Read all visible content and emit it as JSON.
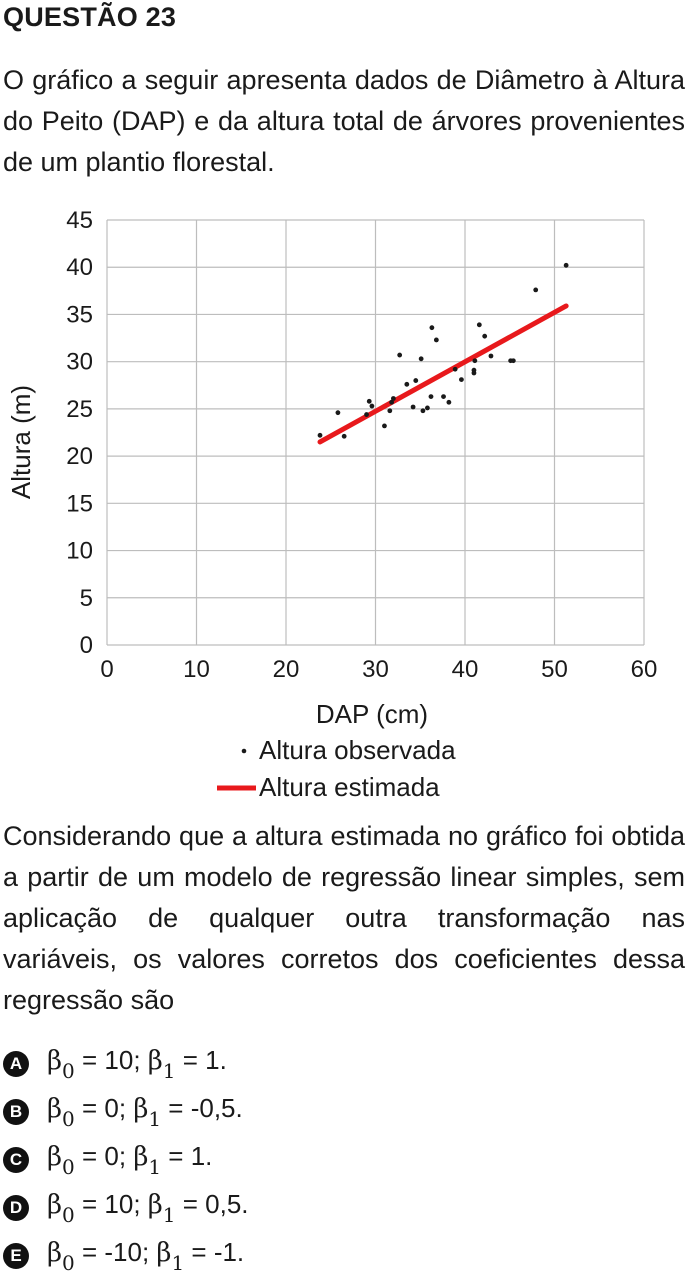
{
  "question": {
    "title": "QUESTÃO 23",
    "stem_intro": "O gráfico a seguir apresenta dados de Diâmetro à Altura do Peito (DAP) e da altura total de árvores provenientes de um plantio florestal.",
    "stem_question": "Considerando que a altura estimada no gráfico foi obtida a partir de um modelo de regressão linear simples, sem aplicação de qualquer outra transformação nas variáveis, os valores corretos dos coeficientes dessa regressão são"
  },
  "options": [
    {
      "letter": "A",
      "b0_symbol": "β",
      "b0_sub": "0",
      "b0_value": " = 10; ",
      "b1_symbol": "β",
      "b1_sub": "1",
      "b1_value": " = 1."
    },
    {
      "letter": "B",
      "b0_symbol": "β",
      "b0_sub": "0",
      "b0_value": " = 0; ",
      "b1_symbol": "β",
      "b1_sub": "1",
      "b1_value": " = -0,5."
    },
    {
      "letter": "C",
      "b0_symbol": "β",
      "b0_sub": "0",
      "b0_value": " = 0; ",
      "b1_symbol": "β",
      "b1_sub": "1",
      "b1_value": " = 1."
    },
    {
      "letter": "D",
      "b0_symbol": "β",
      "b0_sub": "0",
      "b0_value": " = 10; ",
      "b1_symbol": "β",
      "b1_sub": "1",
      "b1_value": " = 0,5."
    },
    {
      "letter": "E",
      "b0_symbol": "β",
      "b0_sub": "0",
      "b0_value": " = -10; ",
      "b1_symbol": "β",
      "b1_sub": "1",
      "b1_value": " = -1."
    }
  ],
  "chart_data": {
    "type": "scatter",
    "xlabel": "DAP (cm)",
    "ylabel": "Altura (m)",
    "xlim": [
      0,
      60
    ],
    "ylim": [
      0,
      45
    ],
    "xticks": [
      0,
      10,
      20,
      30,
      40,
      50,
      60
    ],
    "yticks": [
      0,
      5,
      10,
      15,
      20,
      25,
      30,
      35,
      40,
      45
    ],
    "grid": true,
    "legend_position": "bottom-center",
    "series": [
      {
        "name": "Altura observada",
        "kind": "scatter",
        "color": "#1a1a1a",
        "points": [
          [
            23.8,
            22.2
          ],
          [
            25.8,
            24.6
          ],
          [
            26.5,
            22.1
          ],
          [
            29.0,
            24.4
          ],
          [
            29.3,
            25.8
          ],
          [
            29.6,
            25.3
          ],
          [
            31.0,
            23.2
          ],
          [
            31.6,
            24.8
          ],
          [
            31.8,
            25.7
          ],
          [
            32.0,
            26.1
          ],
          [
            32.7,
            30.7
          ],
          [
            33.5,
            27.6
          ],
          [
            34.2,
            25.2
          ],
          [
            34.5,
            28.0
          ],
          [
            35.1,
            30.3
          ],
          [
            35.3,
            24.8
          ],
          [
            35.8,
            25.1
          ],
          [
            36.2,
            26.3
          ],
          [
            36.3,
            33.6
          ],
          [
            36.8,
            32.3
          ],
          [
            37.6,
            26.3
          ],
          [
            38.2,
            25.7
          ],
          [
            38.9,
            29.2
          ],
          [
            39.6,
            28.1
          ],
          [
            41.0,
            28.8
          ],
          [
            41.0,
            29.1
          ],
          [
            41.1,
            30.1
          ],
          [
            41.6,
            33.9
          ],
          [
            42.2,
            32.7
          ],
          [
            42.9,
            30.6
          ],
          [
            45.1,
            30.1
          ],
          [
            45.4,
            30.1
          ],
          [
            47.9,
            37.6
          ],
          [
            51.3,
            40.2
          ]
        ]
      },
      {
        "name": "Altura estimada",
        "kind": "line",
        "color": "#e8191c",
        "points": [
          [
            23.8,
            21.5
          ],
          [
            51.3,
            35.9
          ]
        ]
      }
    ]
  }
}
